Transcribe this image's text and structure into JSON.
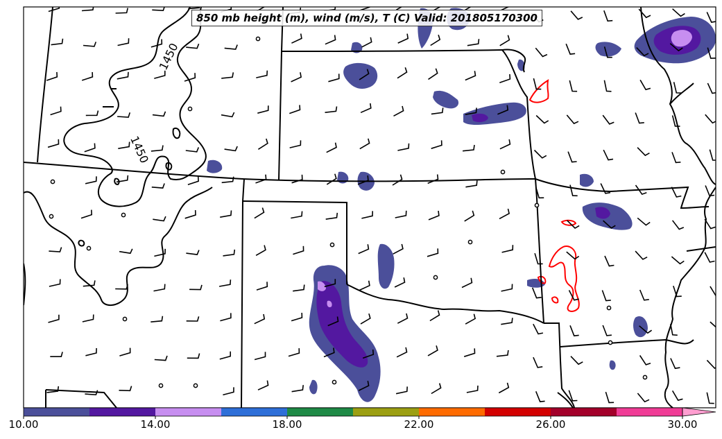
{
  "title": "850 mb height (m), wind (m/s), T (C) Valid: 201805170300",
  "contour_labels": [
    "1450",
    "1450"
  ],
  "colorbar": {
    "ticks": [
      "10.00",
      "14.00",
      "18.00",
      "22.00",
      "26.00",
      "30.00"
    ],
    "colors": [
      "#4b4f9a",
      "#5318a0",
      "#c78ef0",
      "#2e6fd8",
      "#1e8a46",
      "#9c9f12",
      "#ff6b00",
      "#d30000",
      "#a3002a",
      "#f03c96",
      "#ff9ed0"
    ],
    "min": 10,
    "max": 30,
    "extend": "max"
  },
  "colors": {
    "fill_dark": "#4b4f9a",
    "fill_purple": "#5318a0",
    "fill_light": "#c78ef0",
    "boundary": "#000000",
    "temp_contour": "#ff0000"
  }
}
